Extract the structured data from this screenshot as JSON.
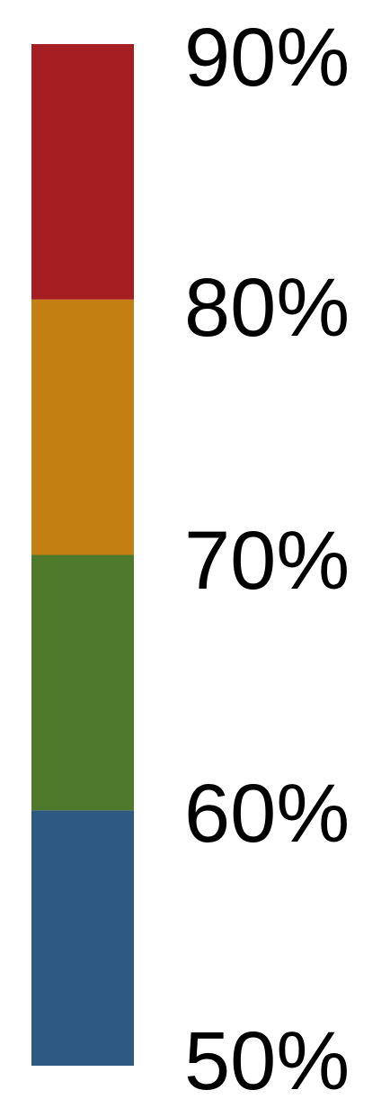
{
  "chart_data": {
    "type": "bar",
    "ticks": [
      "50%",
      "60%",
      "70%",
      "80%",
      "90%"
    ],
    "bands": [
      {
        "from": 50,
        "to": 60,
        "color": "#2e5a82"
      },
      {
        "from": 60,
        "to": 70,
        "color": "#4f7a2c"
      },
      {
        "from": 70,
        "to": 80,
        "color": "#c47f13"
      },
      {
        "from": 80,
        "to": 90,
        "color": "#a51f22"
      }
    ],
    "range": [
      50,
      90
    ]
  }
}
